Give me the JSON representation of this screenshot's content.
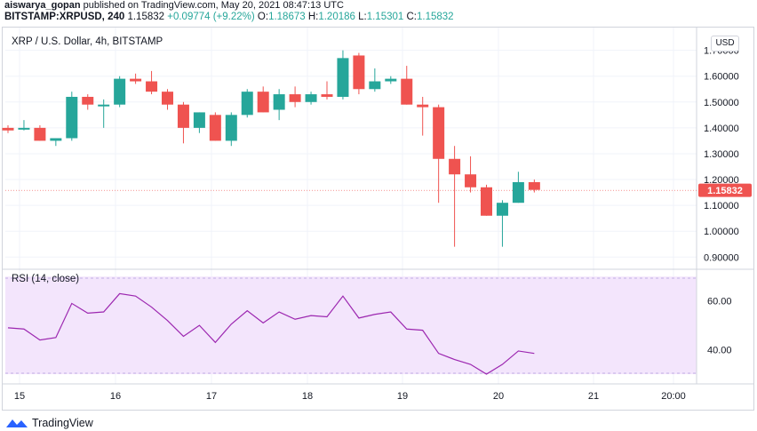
{
  "header": {
    "author": "aiswarya_gopan",
    "published": "published on TradingView.com, May 20, 2021 08:47:13 UTC"
  },
  "quote": {
    "symbol": "BITSTAMP:XRPUSD, 240",
    "last": "1.15832",
    "change": "+0.09774 (+9.22%)",
    "o_label": "O:",
    "o": "1.18673",
    "h_label": "H:",
    "h": "1.20186",
    "l_label": "L:",
    "l": "1.15301",
    "c_label": "C:",
    "c": "1.15832"
  },
  "colors": {
    "up": "#26a69a",
    "down": "#ef5350",
    "rsi_line": "#9c27b0",
    "rsi_band": "#f3e5fc"
  },
  "chart_data": [
    {
      "type": "candlestick",
      "title": "XRP / U.S. Dollar, 4h, BITSTAMP",
      "currency_button": "USD",
      "last_price": 1.15832,
      "last_price_label": "1.15832",
      "y_ticks": [
        "1.70000",
        "1.60000",
        "1.50000",
        "1.40000",
        "1.30000",
        "1.20000",
        "1.10000",
        "1.00000",
        "0.90000"
      ],
      "ylim": [
        0.87,
        1.74
      ],
      "x_ticks": [
        "15",
        "16",
        "17",
        "18",
        "19",
        "20",
        "21",
        "20:00"
      ],
      "candles": [
        {
          "o": 1.4,
          "h": 1.41,
          "l": 1.38,
          "c": 1.39
        },
        {
          "o": 1.4,
          "h": 1.43,
          "l": 1.39,
          "c": 1.4
        },
        {
          "o": 1.4,
          "h": 1.41,
          "l": 1.35,
          "c": 1.35
        },
        {
          "o": 1.35,
          "h": 1.36,
          "l": 1.33,
          "c": 1.36
        },
        {
          "o": 1.36,
          "h": 1.54,
          "l": 1.35,
          "c": 1.52
        },
        {
          "o": 1.52,
          "h": 1.53,
          "l": 1.47,
          "c": 1.49
        },
        {
          "o": 1.49,
          "h": 1.51,
          "l": 1.4,
          "c": 1.49
        },
        {
          "o": 1.49,
          "h": 1.6,
          "l": 1.48,
          "c": 1.59
        },
        {
          "o": 1.59,
          "h": 1.61,
          "l": 1.57,
          "c": 1.58
        },
        {
          "o": 1.58,
          "h": 1.62,
          "l": 1.53,
          "c": 1.54
        },
        {
          "o": 1.54,
          "h": 1.55,
          "l": 1.47,
          "c": 1.49
        },
        {
          "o": 1.49,
          "h": 1.5,
          "l": 1.34,
          "c": 1.4
        },
        {
          "o": 1.4,
          "h": 1.46,
          "l": 1.38,
          "c": 1.46
        },
        {
          "o": 1.45,
          "h": 1.46,
          "l": 1.35,
          "c": 1.35
        },
        {
          "o": 1.35,
          "h": 1.46,
          "l": 1.33,
          "c": 1.45
        },
        {
          "o": 1.45,
          "h": 1.55,
          "l": 1.44,
          "c": 1.54
        },
        {
          "o": 1.54,
          "h": 1.56,
          "l": 1.46,
          "c": 1.46
        },
        {
          "o": 1.47,
          "h": 1.55,
          "l": 1.43,
          "c": 1.53
        },
        {
          "o": 1.53,
          "h": 1.56,
          "l": 1.48,
          "c": 1.5
        },
        {
          "o": 1.5,
          "h": 1.54,
          "l": 1.49,
          "c": 1.53
        },
        {
          "o": 1.53,
          "h": 1.58,
          "l": 1.51,
          "c": 1.52
        },
        {
          "o": 1.52,
          "h": 1.7,
          "l": 1.51,
          "c": 1.67
        },
        {
          "o": 1.68,
          "h": 1.69,
          "l": 1.53,
          "c": 1.55
        },
        {
          "o": 1.55,
          "h": 1.63,
          "l": 1.54,
          "c": 1.58
        },
        {
          "o": 1.58,
          "h": 1.6,
          "l": 1.57,
          "c": 1.59
        },
        {
          "o": 1.59,
          "h": 1.64,
          "l": 1.49,
          "c": 1.49
        },
        {
          "o": 1.49,
          "h": 1.52,
          "l": 1.37,
          "c": 1.48
        },
        {
          "o": 1.48,
          "h": 1.49,
          "l": 1.11,
          "c": 1.28
        },
        {
          "o": 1.28,
          "h": 1.33,
          "l": 0.94,
          "c": 1.22
        },
        {
          "o": 1.22,
          "h": 1.29,
          "l": 1.15,
          "c": 1.17
        },
        {
          "o": 1.17,
          "h": 1.18,
          "l": 1.06,
          "c": 1.06
        },
        {
          "o": 1.06,
          "h": 1.12,
          "l": 0.94,
          "c": 1.11
        },
        {
          "o": 1.11,
          "h": 1.23,
          "l": 1.11,
          "c": 1.19
        },
        {
          "o": 1.19,
          "h": 1.2,
          "l": 1.15,
          "c": 1.16
        }
      ]
    },
    {
      "type": "line",
      "title": "RSI (14, close)",
      "y_ticks": [
        "60.00",
        "40.00"
      ],
      "ylim": [
        26,
        73
      ],
      "band": [
        30,
        70
      ],
      "values": [
        49,
        48.5,
        44,
        45,
        59,
        55,
        55.5,
        63,
        62,
        57.5,
        52,
        45.5,
        50,
        43,
        50.5,
        56,
        51,
        55.5,
        52.5,
        54,
        53.5,
        62,
        53,
        54.5,
        55.5,
        48.5,
        48,
        38.5,
        36,
        34,
        30,
        34,
        39.5,
        38.5
      ]
    }
  ],
  "footer": {
    "brand": "TradingView"
  }
}
